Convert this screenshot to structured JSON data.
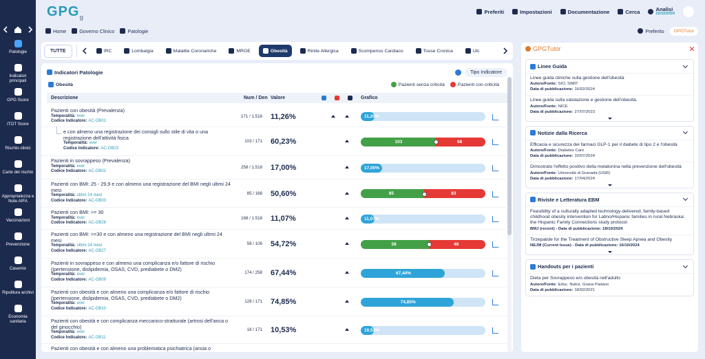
{
  "header": {
    "logo": "GPG",
    "logo_sub": "g",
    "menu": [
      "Preferiti",
      "Impostazioni",
      "Documentazione",
      "Cerca"
    ],
    "analisi": {
      "label": "Analisi",
      "date": "22/10/2024"
    }
  },
  "sidebar": [
    "Patologie",
    "Indicatori principali",
    "GPG Score",
    "ITOT Score",
    "Rischio clinici",
    "Carte del rischio",
    "Appropriatezza e Note AIFA",
    "Vaccinazioni",
    "Prevenzione",
    "Casemix",
    "Ripulitura archivi",
    "Economia sanitaria"
  ],
  "sidebar_active": 0,
  "breadcrumb": [
    "Home",
    "Governo Clinico",
    "Patologie"
  ],
  "actions": {
    "favorite": "Preferito",
    "tutor": "GPGTutor"
  },
  "tabs": {
    "all": "TUTTE",
    "items": [
      "IRC",
      "Lombalgia",
      "Malattie Coronariche",
      "MRGE",
      "Obesità",
      "Rinite Allergica",
      "Scompenso Cardiaco",
      "Tosse Cronica",
      "Ulc"
    ],
    "active": 4
  },
  "panel": {
    "title": "Indicatori Patologie",
    "filter": "Tipo Indicatore",
    "subtitle": "Obesità",
    "legend": [
      "Pazienti senza criticità",
      "Pazienti con criticità"
    ],
    "colors": {
      "ok": "#43a047",
      "ko": "#e53935",
      "value": "#2fa4d8",
      "track": "#cfe4f6"
    },
    "columns": [
      "Descrizione",
      "Num / Den",
      "Valore",
      "Grafico"
    ],
    "temporal_label": "Temporalità:",
    "code_label": "Codice Indicatore:",
    "rows": [
      {
        "description": "Pazienti con obesità (Prevalenza)",
        "temporal": "ever",
        "code": "AC-OB01",
        "num_den": "171 / 1.518",
        "value": "11,26%",
        "percent": 11.26
      },
      {
        "description": "e con almeno una registrazione dei consigli sullo stile di vita o una registrazione dell'attività fisica",
        "temporal": "ever",
        "code": "AC-OB23",
        "num_den": "103 / 171",
        "value": "60,23%",
        "ok": 103,
        "ko": 68,
        "indent": true
      },
      {
        "description": "Pazienti in sovrappeso (Prevalenza)",
        "temporal": "ever",
        "code": "AC-OB02",
        "num_den": "258 / 1.518",
        "value": "17,00%",
        "percent": 17.0
      },
      {
        "description": "Pazienti con BMI: 25 - 29,9 e con almeno una registrazione del BMI negli ultimi 24 mesi",
        "temporal": "ultimi 24 mesi",
        "code": "AC-OB03",
        "num_den": "85 / 168",
        "value": "50,60%",
        "ok": 85,
        "ko": 83
      },
      {
        "description": "Pazienti con BMI: >= 30",
        "temporal": "ever",
        "code": "AC-OB26",
        "num_den": "168 / 1.518",
        "value": "11,07%",
        "percent": 11.07
      },
      {
        "description": "Pazienti con BMI: >=30 e con almeno una registrazione del BMI negli ultimi 24 mesi",
        "temporal": "ultimi 24 mesi",
        "code": "AC-OB27",
        "num_den": "58 / 106",
        "value": "54,72%",
        "ok": 58,
        "ko": 48
      },
      {
        "description": "Pazienti in sovrappeso e con almeno una complicanza e/o fattore di rischio (ipertensione, dislipidemia, OSAS, CVD, prediabete o DM2)",
        "temporal": "ever",
        "code": "AC-OB09",
        "num_den": "174 / 258",
        "value": "67,44%",
        "percent": 67.44
      },
      {
        "description": "Pazienti con obesità e con almeno una complicanza e/o fattore di rischio (ipertensione, dislipidemia, OSAS, CVD, prediabete o DM2)",
        "temporal": "ever",
        "code": "AC-OB10",
        "num_den": "128 / 171",
        "value": "74,85%",
        "percent": 74.85
      },
      {
        "description": "Pazienti con obesità e con complicanza meccanico-stratturale (artrosi dell'anca o del ginocchio)",
        "temporal": "ever",
        "code": "AC-OB11",
        "num_den": "18 / 171",
        "value": "10,53%",
        "percent": 10.53
      },
      {
        "description": "Pazienti con obesità e con almeno una problematica psichiatrica (ansia o"
      }
    ]
  },
  "tutor": {
    "logo": "GPGTutor",
    "source_label": "Autore/Fonte:",
    "date_label": "Data di pubblicazione:",
    "sections": [
      {
        "title": "Linee Guida",
        "items": [
          {
            "title": "Linee guida cliniche sulla gestione dell'obesità",
            "source": "SIO, SIMIT",
            "date": "16/02/2024"
          },
          {
            "title": "Linee guida sulla valutazione e gestione dell'obesità.",
            "source": "NICE",
            "date": "27/07/2023"
          }
        ]
      },
      {
        "title": "Notizie dalla Ricerca",
        "items": [
          {
            "title": "Efficacia e sicurezza dei farmaci GLP-1 per il diabete di tipo 2 e l'obesità",
            "source": "Diabetes Care",
            "date": "10/07/2024"
          },
          {
            "title": "Dimostrato l'effetto positivo della melatonina nella prevenzione dell'obesità",
            "source": "Università di Granada (UGR)",
            "date": "17/04/2024"
          }
        ]
      },
      {
        "title": "Riviste e Letteratura EBM",
        "items": [
          {
            "title": "Feasibility of a culturally adapted technology-delivered, family-based childhood obesity intervention for Latino/Hispanic families in rural Nebraska: the Hispanic Family Connections study protocol",
            "meta": "BMJ (recent) - Data di pubblicazione: 18/10/2024"
          },
          {
            "title": "Tirzepatide for the Treatment of Obstructive Sleep Apnea and Obesity",
            "meta": "NEJM (Current Issue) - Data di pubblicazione: 16/10/2024"
          }
        ]
      },
      {
        "title": "Handouts per i pazienti",
        "items": [
          {
            "title": "Dieta per Sovrappeso e/o obesità nell'adulto",
            "source": "Educ. Nutriz. Grana Padano",
            "date": "18/02/2021"
          }
        ]
      }
    ]
  }
}
